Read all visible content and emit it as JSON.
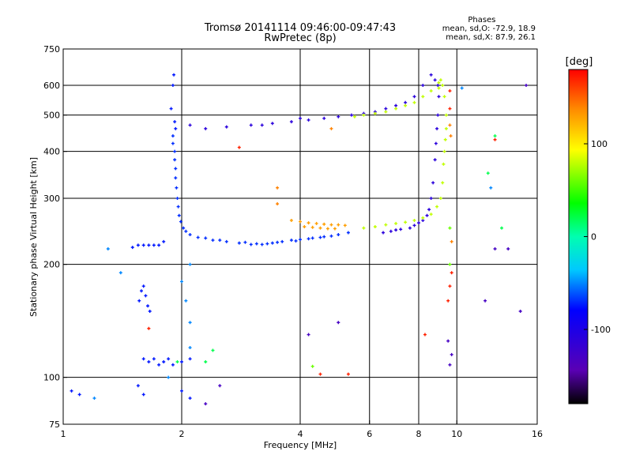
{
  "header": {
    "title_line1": "Tromsø 20141114 09:46:00-09:47:43",
    "title_line2": "RwPretec (8p)",
    "phases_label": "Phases",
    "mean_sd_o": "mean, sd,O: -72.9, 18.9",
    "mean_sd_x": "mean, sd,X:  87.9, 26.1"
  },
  "chart_data": {
    "type": "scatter",
    "xlabel": "Frequency [MHz]",
    "ylabel": "Stationary phase Virtual Height [km]",
    "xscale": "log",
    "yscale": "log",
    "xlim": [
      1,
      16
    ],
    "ylim": [
      75,
      750
    ],
    "x_ticks": [
      1,
      2,
      4,
      6,
      8,
      10,
      16
    ],
    "y_ticks": [
      75,
      100,
      200,
      300,
      400,
      500,
      600,
      750
    ],
    "x_gridlines": [
      2,
      4,
      6,
      8,
      10
    ],
    "y_gridlines": [
      100,
      200,
      300,
      400,
      500,
      600
    ],
    "colorbar": {
      "label": "[deg]",
      "range": [
        -180,
        180
      ],
      "ticks": [
        100,
        0,
        -100
      ]
    },
    "colors": {
      "red": "#ff0000",
      "orange": "#ff8c00",
      "yellow": "#ffff00",
      "green": "#00e600",
      "cyan": "#00e6e6",
      "blue": "#0060ff",
      "darkblue": "#0000cc",
      "black": "#000000"
    },
    "series": [
      {
        "phase": -70,
        "points": [
          [
            1.9,
            440
          ],
          [
            1.9,
            420
          ],
          [
            1.92,
            400
          ],
          [
            1.92,
            380
          ],
          [
            1.93,
            360
          ],
          [
            1.93,
            340
          ],
          [
            1.94,
            320
          ],
          [
            1.95,
            300
          ],
          [
            1.96,
            285
          ],
          [
            1.97,
            270
          ],
          [
            1.99,
            260
          ],
          [
            2.02,
            250
          ],
          [
            2.1,
            240
          ],
          [
            2.2,
            236
          ],
          [
            2.4,
            232
          ],
          [
            2.6,
            230
          ],
          [
            2.8,
            228
          ],
          [
            3.0,
            226
          ],
          [
            3.2,
            226
          ],
          [
            3.4,
            228
          ],
          [
            3.6,
            230
          ],
          [
            3.8,
            232
          ],
          [
            4.0,
            233
          ],
          [
            4.3,
            235
          ],
          [
            4.6,
            237
          ],
          [
            5.0,
            240
          ],
          [
            5.3,
            243
          ],
          [
            2.05,
            245
          ],
          [
            2.3,
            235
          ],
          [
            2.5,
            232
          ],
          [
            2.9,
            229
          ],
          [
            3.1,
            227
          ],
          [
            3.3,
            227
          ],
          [
            3.5,
            229
          ],
          [
            3.9,
            231
          ],
          [
            4.2,
            234
          ],
          [
            4.5,
            236
          ],
          [
            4.8,
            238
          ]
        ]
      },
      {
        "phase": -75,
        "points": [
          [
            1.88,
            520
          ],
          [
            1.9,
            600
          ],
          [
            1.91,
            640
          ],
          [
            1.92,
            480
          ],
          [
            1.93,
            460
          ],
          [
            1.8,
            230
          ],
          [
            1.75,
            225
          ],
          [
            1.7,
            225
          ],
          [
            1.65,
            225
          ],
          [
            1.6,
            225
          ],
          [
            1.55,
            225
          ],
          [
            1.5,
            222
          ],
          [
            1.6,
            175
          ],
          [
            1.62,
            165
          ],
          [
            1.64,
            155
          ],
          [
            1.66,
            150
          ],
          [
            1.56,
            160
          ],
          [
            1.58,
            170
          ],
          [
            1.6,
            112
          ],
          [
            1.65,
            110
          ],
          [
            1.7,
            112
          ],
          [
            1.75,
            108
          ],
          [
            1.8,
            110
          ],
          [
            1.85,
            112
          ],
          [
            1.9,
            108
          ],
          [
            2.0,
            110
          ],
          [
            2.1,
            112
          ],
          [
            1.55,
            95
          ],
          [
            1.6,
            90
          ],
          [
            2.0,
            92
          ],
          [
            2.1,
            88
          ],
          [
            1.05,
            92
          ],
          [
            1.1,
            90
          ]
        ]
      },
      {
        "phase": -110,
        "points": [
          [
            8.5,
            280
          ],
          [
            8.6,
            300
          ],
          [
            8.7,
            330
          ],
          [
            8.8,
            380
          ],
          [
            8.85,
            420
          ],
          [
            8.9,
            460
          ],
          [
            8.95,
            500
          ],
          [
            9.0,
            560
          ],
          [
            8.4,
            270
          ],
          [
            8.2,
            262
          ],
          [
            8.0,
            258
          ],
          [
            7.6,
            250
          ],
          [
            7.2,
            248
          ],
          [
            6.8,
            245
          ],
          [
            6.5,
            243
          ],
          [
            7.0,
            247
          ],
          [
            7.8,
            254
          ],
          [
            8.95,
            600
          ],
          [
            8.8,
            620
          ],
          [
            8.6,
            640
          ],
          [
            8.2,
            600
          ],
          [
            7.8,
            560
          ],
          [
            7.4,
            540
          ],
          [
            7.0,
            530
          ],
          [
            6.6,
            520
          ],
          [
            6.2,
            510
          ],
          [
            5.8,
            505
          ],
          [
            5.4,
            500
          ],
          [
            5.0,
            495
          ],
          [
            4.6,
            490
          ],
          [
            4.2,
            485
          ],
          [
            3.8,
            480
          ],
          [
            3.4,
            475
          ],
          [
            3.0,
            470
          ],
          [
            2.6,
            465
          ],
          [
            2.3,
            460
          ],
          [
            2.1,
            470
          ],
          [
            3.2,
            470
          ],
          [
            4.0,
            490
          ]
        ]
      },
      {
        "phase": 80,
        "points": [
          [
            5.8,
            250
          ],
          [
            6.2,
            252
          ],
          [
            6.6,
            255
          ],
          [
            7.0,
            257
          ],
          [
            7.4,
            259
          ],
          [
            7.8,
            262
          ],
          [
            8.2,
            266
          ],
          [
            8.6,
            272
          ],
          [
            8.9,
            285
          ],
          [
            9.1,
            300
          ],
          [
            9.2,
            330
          ],
          [
            9.25,
            370
          ],
          [
            9.3,
            400
          ],
          [
            9.35,
            430
          ],
          [
            9.4,
            460
          ],
          [
            9.4,
            500
          ],
          [
            9.3,
            560
          ],
          [
            9.2,
            600
          ],
          [
            9.0,
            610
          ],
          [
            8.6,
            580
          ],
          [
            8.2,
            560
          ],
          [
            7.8,
            540
          ],
          [
            7.4,
            530
          ],
          [
            7.0,
            520
          ],
          [
            6.6,
            510
          ],
          [
            6.2,
            505
          ],
          [
            5.8,
            500
          ],
          [
            5.5,
            495
          ],
          [
            9.1,
            620
          ],
          [
            9.0,
            590
          ]
        ]
      },
      {
        "phase": 130,
        "points": [
          [
            4.0,
            260
          ],
          [
            4.2,
            258
          ],
          [
            4.4,
            257
          ],
          [
            4.6,
            256
          ],
          [
            4.8,
            255
          ],
          [
            5.0,
            255
          ],
          [
            5.2,
            254
          ],
          [
            4.1,
            252
          ],
          [
            4.3,
            251
          ],
          [
            4.5,
            250
          ],
          [
            4.7,
            249
          ],
          [
            4.9,
            249
          ],
          [
            3.8,
            262
          ]
        ]
      },
      {
        "phase": 170,
        "points": [
          [
            1.65,
            135
          ],
          [
            9.6,
            580
          ],
          [
            9.6,
            520
          ],
          [
            9.7,
            190
          ],
          [
            9.6,
            175
          ],
          [
            9.5,
            160
          ],
          [
            4.5,
            102
          ],
          [
            5.3,
            102
          ],
          [
            12.5,
            430
          ],
          [
            2.8,
            410
          ],
          [
            8.3,
            130
          ]
        ]
      },
      {
        "phase": 140,
        "points": [
          [
            9.6,
            470
          ],
          [
            9.65,
            440
          ],
          [
            3.5,
            290
          ],
          [
            3.5,
            320
          ],
          [
            9.7,
            230
          ],
          [
            4.8,
            460
          ]
        ]
      },
      {
        "phase": -50,
        "points": [
          [
            2.1,
            200
          ],
          [
            2.0,
            180
          ],
          [
            2.05,
            160
          ],
          [
            2.1,
            140
          ],
          [
            1.85,
            100
          ],
          [
            2.1,
            120
          ],
          [
            1.3,
            220
          ],
          [
            1.4,
            190
          ],
          [
            12.2,
            320
          ],
          [
            10.3,
            590
          ],
          [
            1.2,
            88
          ]
        ]
      },
      {
        "phase": -130,
        "points": [
          [
            11.8,
            160
          ],
          [
            14.5,
            150
          ],
          [
            4.2,
            130
          ],
          [
            5.0,
            140
          ],
          [
            9.5,
            125
          ],
          [
            12.5,
            220
          ],
          [
            13.5,
            220
          ],
          [
            15.0,
            600
          ],
          [
            2.3,
            85
          ],
          [
            2.5,
            95
          ],
          [
            9.6,
            108
          ],
          [
            9.7,
            115
          ]
        ]
      },
      {
        "phase": 20,
        "points": [
          [
            2.4,
            118
          ],
          [
            2.3,
            110
          ],
          [
            1.95,
            110
          ],
          [
            12.5,
            440
          ],
          [
            12.0,
            350
          ],
          [
            13.0,
            250
          ]
        ]
      },
      {
        "phase": 60,
        "points": [
          [
            4.3,
            107
          ],
          [
            9.6,
            250
          ],
          [
            9.6,
            200
          ]
        ]
      }
    ]
  }
}
